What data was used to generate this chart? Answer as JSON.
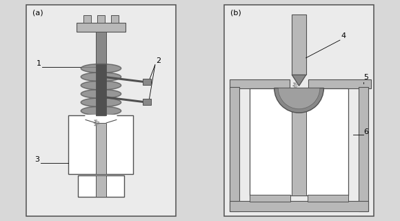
{
  "bg_color": "#d8d8d8",
  "panel_bg": "#ebebeb",
  "border_color": "#707070",
  "dark_gray": "#505050",
  "medium_gray": "#888888",
  "light_gray": "#b8b8b8",
  "coil_color": "#606060",
  "label_a": "(a)",
  "label_b": "(b)"
}
